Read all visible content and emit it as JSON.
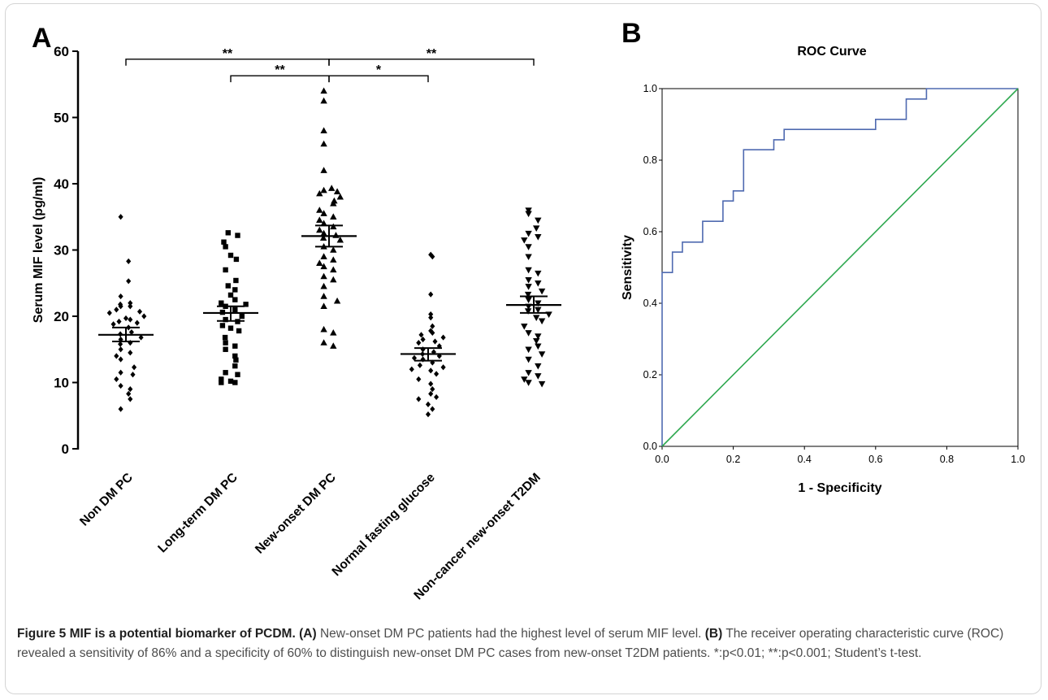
{
  "panel_a_letter": "A",
  "panel_b_letter": "B",
  "chart_data": [
    {
      "type": "scatter",
      "title": "",
      "xlabel": "",
      "ylabel": "Serum MIF level (pg/ml)",
      "ylim": [
        0,
        60
      ],
      "yticks": [
        0,
        10,
        20,
        30,
        40,
        50,
        60
      ],
      "categories": [
        "Non DM PC",
        "Long-term DM PC",
        "New-onset DM PC",
        "Normal fasting glucose",
        "Non-cancer new-onset T2DM"
      ],
      "marker_shapes": [
        "diamond",
        "square",
        "triangle-up",
        "diamond",
        "triangle-down"
      ],
      "grid": false,
      "groups": [
        {
          "name": "Non DM PC",
          "mean": 17.2,
          "sem_low": 16.2,
          "sem_high": 18.3,
          "values": [
            35.0,
            28.3,
            25.3,
            23.0,
            22.0,
            21.8,
            21.5,
            21.5,
            21.0,
            20.7,
            20.5,
            20.0,
            19.7,
            19.5,
            19.2,
            19.0,
            18.8,
            18.3,
            17.6,
            17.3,
            16.8,
            16.5,
            16.0,
            15.8,
            15.0,
            14.5,
            14.0,
            13.5,
            12.3,
            11.5,
            11.2,
            10.5,
            9.5,
            9.0,
            8.3,
            7.5,
            6.0
          ]
        },
        {
          "name": "Long-term DM PC",
          "mean": 20.5,
          "sem_low": 19.3,
          "sem_high": 21.5,
          "values": [
            32.6,
            32.2,
            31.2,
            30.5,
            29.2,
            28.6,
            27.0,
            25.4,
            24.6,
            24.0,
            23.2,
            22.5,
            22.0,
            21.8,
            21.5,
            21.0,
            20.6,
            20.0,
            19.5,
            19.2,
            18.6,
            18.2,
            17.8,
            16.8,
            16.0,
            15.5,
            15.0,
            14.0,
            13.4,
            12.5,
            11.5,
            11.2,
            10.5,
            10.2,
            10.0,
            10.0
          ]
        },
        {
          "name": "New-onset DM PC",
          "mean": 32.1,
          "sem_low": 30.5,
          "sem_high": 33.7,
          "values": [
            54.0,
            52.5,
            48.0,
            46.0,
            42.0,
            39.3,
            39.0,
            38.8,
            38.5,
            38.0,
            37.4,
            37.0,
            36.0,
            35.5,
            35.0,
            34.5,
            34.0,
            33.5,
            33.0,
            32.5,
            32.2,
            31.8,
            31.5,
            30.5,
            30.0,
            29.0,
            28.5,
            28.0,
            27.5,
            27.0,
            26.0,
            25.5,
            24.5,
            23.0,
            22.3,
            21.5,
            18.0,
            17.5,
            16.0,
            15.5
          ]
        },
        {
          "name": "Normal fasting glucose",
          "mean": 14.3,
          "sem_low": 13.3,
          "sem_high": 15.2,
          "values": [
            29.3,
            29.0,
            23.3,
            20.3,
            19.8,
            18.5,
            17.8,
            17.5,
            17.2,
            16.8,
            16.5,
            16.2,
            16.0,
            15.5,
            15.0,
            14.6,
            14.3,
            14.0,
            13.7,
            13.5,
            13.0,
            12.6,
            12.3,
            12.0,
            11.8,
            11.3,
            10.5,
            9.8,
            9.0,
            8.3,
            7.8,
            7.5,
            6.7,
            6.0,
            5.2
          ]
        },
        {
          "name": "Non-cancer new-onset T2DM",
          "mean": 21.7,
          "sem_low": 20.5,
          "sem_high": 23.0,
          "values": [
            36.0,
            35.5,
            34.5,
            33.3,
            32.5,
            32.0,
            31.5,
            30.5,
            29.0,
            27.0,
            26.5,
            25.5,
            25.0,
            24.5,
            23.8,
            23.3,
            22.5,
            22.0,
            21.5,
            21.0,
            20.8,
            20.3,
            19.8,
            19.3,
            18.5,
            17.5,
            17.0,
            16.3,
            15.5,
            15.0,
            14.3,
            13.5,
            12.5,
            11.5,
            11.0,
            10.5,
            10.0,
            9.8
          ]
        }
      ],
      "significance": [
        {
          "from": 0,
          "to": 2,
          "y": 58.8,
          "label": "**"
        },
        {
          "from": 1,
          "to": 2,
          "y": 56.3,
          "label": "**"
        },
        {
          "from": 2,
          "to": 3,
          "y": 56.3,
          "label": "*"
        },
        {
          "from": 2,
          "to": 4,
          "y": 58.8,
          "label": "**"
        }
      ]
    },
    {
      "type": "line",
      "title": "ROC Curve",
      "xlabel": "1 - Specificity",
      "ylabel": "Sensitivity",
      "xlim": [
        0,
        1
      ],
      "ylim": [
        0,
        1
      ],
      "xticks": [
        "0.0",
        "0.2",
        "0.4",
        "0.6",
        "0.8",
        "1.0"
      ],
      "yticks": [
        "0.0",
        "0.2",
        "0.4",
        "0.6",
        "0.8",
        "1.0"
      ],
      "grid": false,
      "series": [
        {
          "color": "#4f6ab0",
          "step": true,
          "points": [
            [
              0,
              0
            ],
            [
              0,
              0.486
            ],
            [
              0.029,
              0.486
            ],
            [
              0.029,
              0.543
            ],
            [
              0.057,
              0.543
            ],
            [
              0.057,
              0.571
            ],
            [
              0.114,
              0.571
            ],
            [
              0.114,
              0.629
            ],
            [
              0.171,
              0.629
            ],
            [
              0.171,
              0.686
            ],
            [
              0.2,
              0.686
            ],
            [
              0.2,
              0.714
            ],
            [
              0.229,
              0.714
            ],
            [
              0.229,
              0.829
            ],
            [
              0.314,
              0.829
            ],
            [
              0.314,
              0.857
            ],
            [
              0.343,
              0.857
            ],
            [
              0.343,
              0.886
            ],
            [
              0.6,
              0.886
            ],
            [
              0.6,
              0.914
            ],
            [
              0.686,
              0.914
            ],
            [
              0.686,
              0.971
            ],
            [
              0.743,
              0.971
            ],
            [
              0.743,
              1.0
            ],
            [
              1.0,
              1.0
            ]
          ]
        },
        {
          "color": "#2ea84f",
          "points": [
            [
              0,
              0
            ],
            [
              1,
              1
            ]
          ]
        }
      ]
    }
  ],
  "caption": {
    "label": "Figure 5 MIF is a potential biomarker of PCDM.",
    "a_tag": "(A)",
    "a_text": "New-onset DM PC patients had the highest level of serum MIF level.",
    "b_tag": "(B)",
    "b_text": "The receiver operating characteristic curve (ROC) revealed a sensitivity of 86% and a specificity of 60% to distinguish new-onset DM PC cases from new-onset T2DM patients. *:p<0.01; **:p<0.001; Student’s t-test."
  }
}
